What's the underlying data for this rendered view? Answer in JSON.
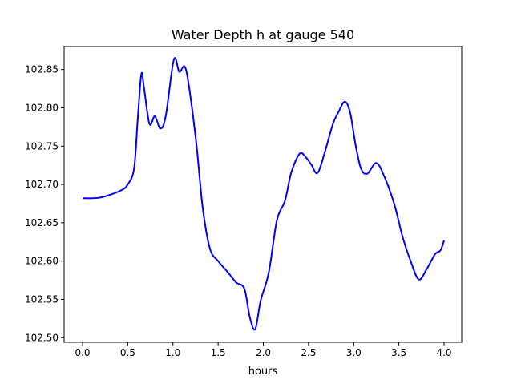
{
  "chart_data": {
    "type": "line",
    "title": "Water Depth h at gauge 540",
    "xlabel": "hours",
    "ylabel": "",
    "xlim": [
      -0.204,
      4.195
    ],
    "ylim": [
      102.494,
      102.88
    ],
    "xticks": [
      0.0,
      0.5,
      1.0,
      1.5,
      2.0,
      2.5,
      3.0,
      3.5,
      4.0
    ],
    "xtick_labels": [
      "0.0",
      "0.5",
      "1.0",
      "1.5",
      "2.0",
      "2.5",
      "3.0",
      "3.5",
      "4.0"
    ],
    "yticks": [
      102.5,
      102.55,
      102.6,
      102.65,
      102.7,
      102.75,
      102.8,
      102.85
    ],
    "ytick_labels": [
      "102.50",
      "102.55",
      "102.60",
      "102.65",
      "102.70",
      "102.75",
      "102.80",
      "102.85"
    ],
    "grid": false,
    "series": [
      {
        "name": "h",
        "color": "#0000ff",
        "x": [
          0.0,
          0.2,
          0.42,
          0.5,
          0.57,
          0.61,
          0.65,
          0.68,
          0.74,
          0.8,
          0.86,
          0.92,
          1.01,
          1.07,
          1.13,
          1.18,
          1.26,
          1.33,
          1.41,
          1.5,
          1.61,
          1.7,
          1.79,
          1.85,
          1.91,
          1.97,
          2.06,
          2.15,
          2.24,
          2.31,
          2.4,
          2.46,
          2.53,
          2.6,
          2.68,
          2.77,
          2.83,
          2.9,
          2.96,
          3.02,
          3.08,
          3.15,
          3.25,
          3.34,
          3.45,
          3.54,
          3.63,
          3.72,
          3.81,
          3.9,
          3.96,
          4.0
        ],
        "y": [
          102.682,
          102.683,
          102.692,
          102.7,
          102.721,
          102.784,
          102.844,
          102.826,
          102.779,
          102.789,
          102.773,
          102.789,
          102.863,
          102.847,
          102.854,
          102.826,
          102.752,
          102.669,
          102.616,
          102.6,
          102.585,
          102.572,
          102.564,
          102.527,
          102.511,
          102.548,
          102.585,
          102.653,
          102.679,
          102.716,
          102.74,
          102.737,
          102.726,
          102.715,
          102.742,
          102.779,
          102.794,
          102.808,
          102.794,
          102.752,
          102.721,
          102.714,
          102.728,
          102.71,
          102.674,
          102.632,
          102.6,
          102.576,
          102.59,
          102.609,
          102.614,
          102.627
        ]
      }
    ]
  }
}
